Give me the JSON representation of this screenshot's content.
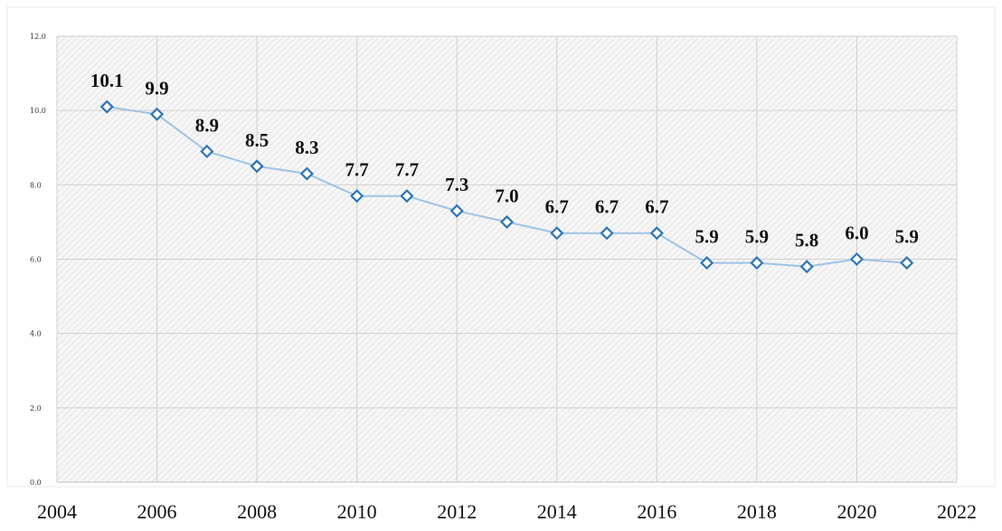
{
  "chart_data": {
    "type": "line",
    "x": [
      2005,
      2006,
      2007,
      2008,
      2009,
      2010,
      2011,
      2012,
      2013,
      2014,
      2015,
      2016,
      2017,
      2018,
      2019,
      2020,
      2021
    ],
    "series": [
      {
        "values": [
          10.1,
          9.9,
          8.9,
          8.5,
          8.3,
          7.7,
          7.7,
          7.3,
          7.0,
          6.7,
          6.7,
          6.7,
          5.9,
          5.9,
          5.8,
          6.0,
          5.9
        ],
        "labels": [
          "10.1",
          "9.9",
          "8.9",
          "8.5",
          "8.3",
          "7.7",
          "7.7",
          "7.3",
          "7.0",
          "6.7",
          "6.7",
          "6.7",
          "5.9",
          "5.9",
          "5.8",
          "6.0",
          "5.9"
        ]
      }
    ],
    "xlim": [
      2004,
      2022
    ],
    "ylim": [
      0,
      12
    ],
    "xticks": [
      "2004",
      "2006",
      "2008",
      "2010",
      "2012",
      "2014",
      "2016",
      "2018",
      "2020",
      "2022"
    ],
    "yticks": [
      "0.0",
      "2.0",
      "4.0",
      "6.0",
      "8.0",
      "10.0",
      "12.0"
    ],
    "grid": true,
    "line_color": "#9dc3e6",
    "marker_color": "#2e75b6"
  }
}
